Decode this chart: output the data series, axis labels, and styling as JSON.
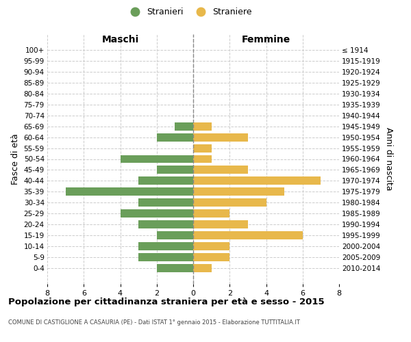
{
  "age_groups": [
    "100+",
    "95-99",
    "90-94",
    "85-89",
    "80-84",
    "75-79",
    "70-74",
    "65-69",
    "60-64",
    "55-59",
    "50-54",
    "45-49",
    "40-44",
    "35-39",
    "30-34",
    "25-29",
    "20-24",
    "15-19",
    "10-14",
    "5-9",
    "0-4"
  ],
  "birth_years": [
    "≤ 1914",
    "1915-1919",
    "1920-1924",
    "1925-1929",
    "1930-1934",
    "1935-1939",
    "1940-1944",
    "1945-1949",
    "1950-1954",
    "1955-1959",
    "1960-1964",
    "1965-1969",
    "1970-1974",
    "1975-1979",
    "1980-1984",
    "1985-1989",
    "1990-1994",
    "1995-1999",
    "2000-2004",
    "2005-2009",
    "2010-2014"
  ],
  "maschi": [
    0,
    0,
    0,
    0,
    0,
    0,
    0,
    1,
    2,
    0,
    4,
    2,
    3,
    7,
    3,
    4,
    3,
    2,
    3,
    3,
    2
  ],
  "femmine": [
    0,
    0,
    0,
    0,
    0,
    0,
    0,
    1,
    3,
    1,
    1,
    3,
    7,
    5,
    4,
    2,
    3,
    6,
    2,
    2,
    1
  ],
  "maschi_color": "#6a9e5a",
  "femmine_color": "#e8b84b",
  "title": "Popolazione per cittadinanza straniera per età e sesso - 2015",
  "subtitle": "COMUNE DI CASTIGLIONE A CASAURIA (PE) - Dati ISTAT 1° gennaio 2015 - Elaborazione TUTTITALIA.IT",
  "ylabel_left": "Fasce di età",
  "ylabel_right": "Anni di nascita",
  "header_left": "Maschi",
  "header_right": "Femmine",
  "legend_stranieri": "Stranieri",
  "legend_straniere": "Straniere",
  "xlim": 8,
  "background_color": "#ffffff",
  "grid_color": "#cccccc"
}
